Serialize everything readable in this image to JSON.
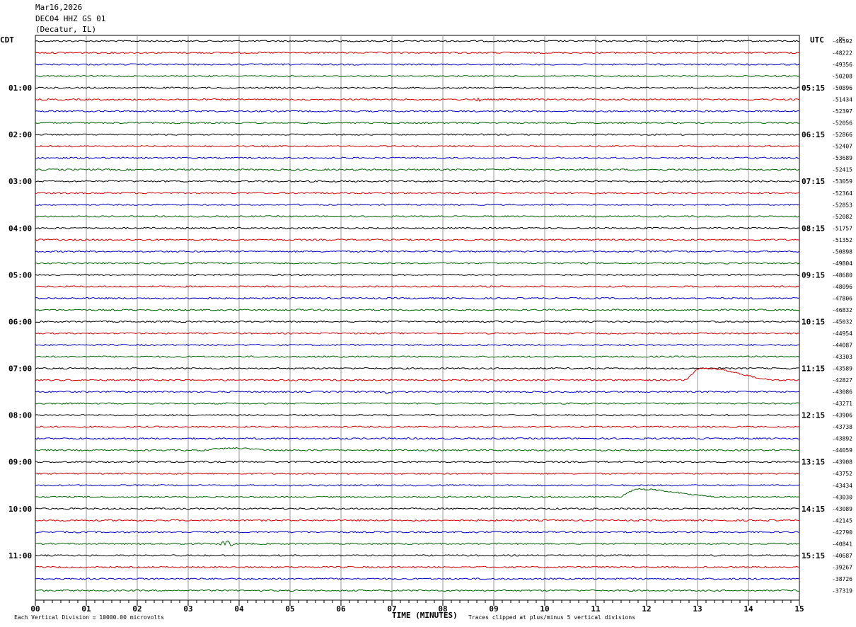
{
  "header": {
    "date": "Mar16,2026",
    "station": "DEC04 HHZ GS 01",
    "location": "(Decatur, IL)"
  },
  "left_zone_label": "CDT",
  "right_zone_label": "UTC",
  "dc_label": "DC",
  "chart_data": {
    "type": "line",
    "title": "",
    "xlabel": "TIME (MINUTES)",
    "x_ticks": [
      "00",
      "01",
      "02",
      "03",
      "04",
      "05",
      "06",
      "07",
      "08",
      "09",
      "10",
      "11",
      "12",
      "13",
      "14",
      "15"
    ],
    "xlim": [
      0,
      15
    ],
    "row_count": 48,
    "row_colors": [
      "#000000",
      "#d80000",
      "#0000c8",
      "#006400"
    ],
    "left_time_labels": [
      {
        "row": 4,
        "text": "01:00"
      },
      {
        "row": 8,
        "text": "02:00"
      },
      {
        "row": 12,
        "text": "03:00"
      },
      {
        "row": 16,
        "text": "04:00"
      },
      {
        "row": 20,
        "text": "05:00"
      },
      {
        "row": 24,
        "text": "06:00"
      },
      {
        "row": 28,
        "text": "07:00"
      },
      {
        "row": 32,
        "text": "08:00"
      },
      {
        "row": 36,
        "text": "09:00"
      },
      {
        "row": 40,
        "text": "10:00"
      },
      {
        "row": 44,
        "text": "11:00"
      }
    ],
    "right_time_labels": [
      {
        "row": 4,
        "text": "05:15"
      },
      {
        "row": 8,
        "text": "06:15"
      },
      {
        "row": 12,
        "text": "07:15"
      },
      {
        "row": 16,
        "text": "08:15"
      },
      {
        "row": 20,
        "text": "09:15"
      },
      {
        "row": 24,
        "text": "10:15"
      },
      {
        "row": 28,
        "text": "11:15"
      },
      {
        "row": 32,
        "text": "12:15"
      },
      {
        "row": 36,
        "text": "13:15"
      },
      {
        "row": 40,
        "text": "14:15"
      },
      {
        "row": 44,
        "text": "15:15"
      }
    ],
    "dc_offsets": [
      "-46592",
      "-48222",
      "-49356",
      "-50208",
      "-50896",
      "-51434",
      "-52397",
      "-52056",
      "-52866",
      "-52407",
      "-53689",
      "-52415",
      "-53059",
      "-52364",
      "-52853",
      "-52082",
      "-51757",
      "-51352",
      "-50898",
      "-49804",
      "-48680",
      "-48096",
      "-47806",
      "-46832",
      "-45032",
      "-44954",
      "-44087",
      "-43303",
      "-43589",
      "-42827",
      "-43086",
      "-43271",
      "-43906",
      "-43738",
      "-43892",
      "-44059",
      "-43908",
      "-43752",
      "-43434",
      "-43030",
      "-43089",
      "-42145",
      "-42790",
      "-40841",
      "-40687",
      "-39267",
      "-38726",
      "-37319"
    ],
    "events": [
      {
        "row": 29,
        "onset_min": 12.78,
        "peak_min": 13.1,
        "end_min": 14.6,
        "rise": 17
      },
      {
        "row": 35,
        "onset_min": 3.3,
        "peak_min": 3.9,
        "end_min": 4.7,
        "rise": 3
      },
      {
        "row": 39,
        "onset_min": 11.5,
        "peak_min": 11.85,
        "end_min": 13.5,
        "rise": 11
      }
    ],
    "noise_bursts": [
      {
        "row": 43,
        "min": 3.75,
        "amp": 3
      },
      {
        "row": 43,
        "min": 2.8,
        "amp": 2
      },
      {
        "row": 5,
        "min": 8.7,
        "amp": 2
      },
      {
        "row": 30,
        "min": 7.0,
        "amp": 2
      }
    ],
    "footer_left": "Each Vertical Division = 10000.00 microvolts",
    "footer_right": "Traces clipped at plus/minus 5 vertical divisions"
  }
}
